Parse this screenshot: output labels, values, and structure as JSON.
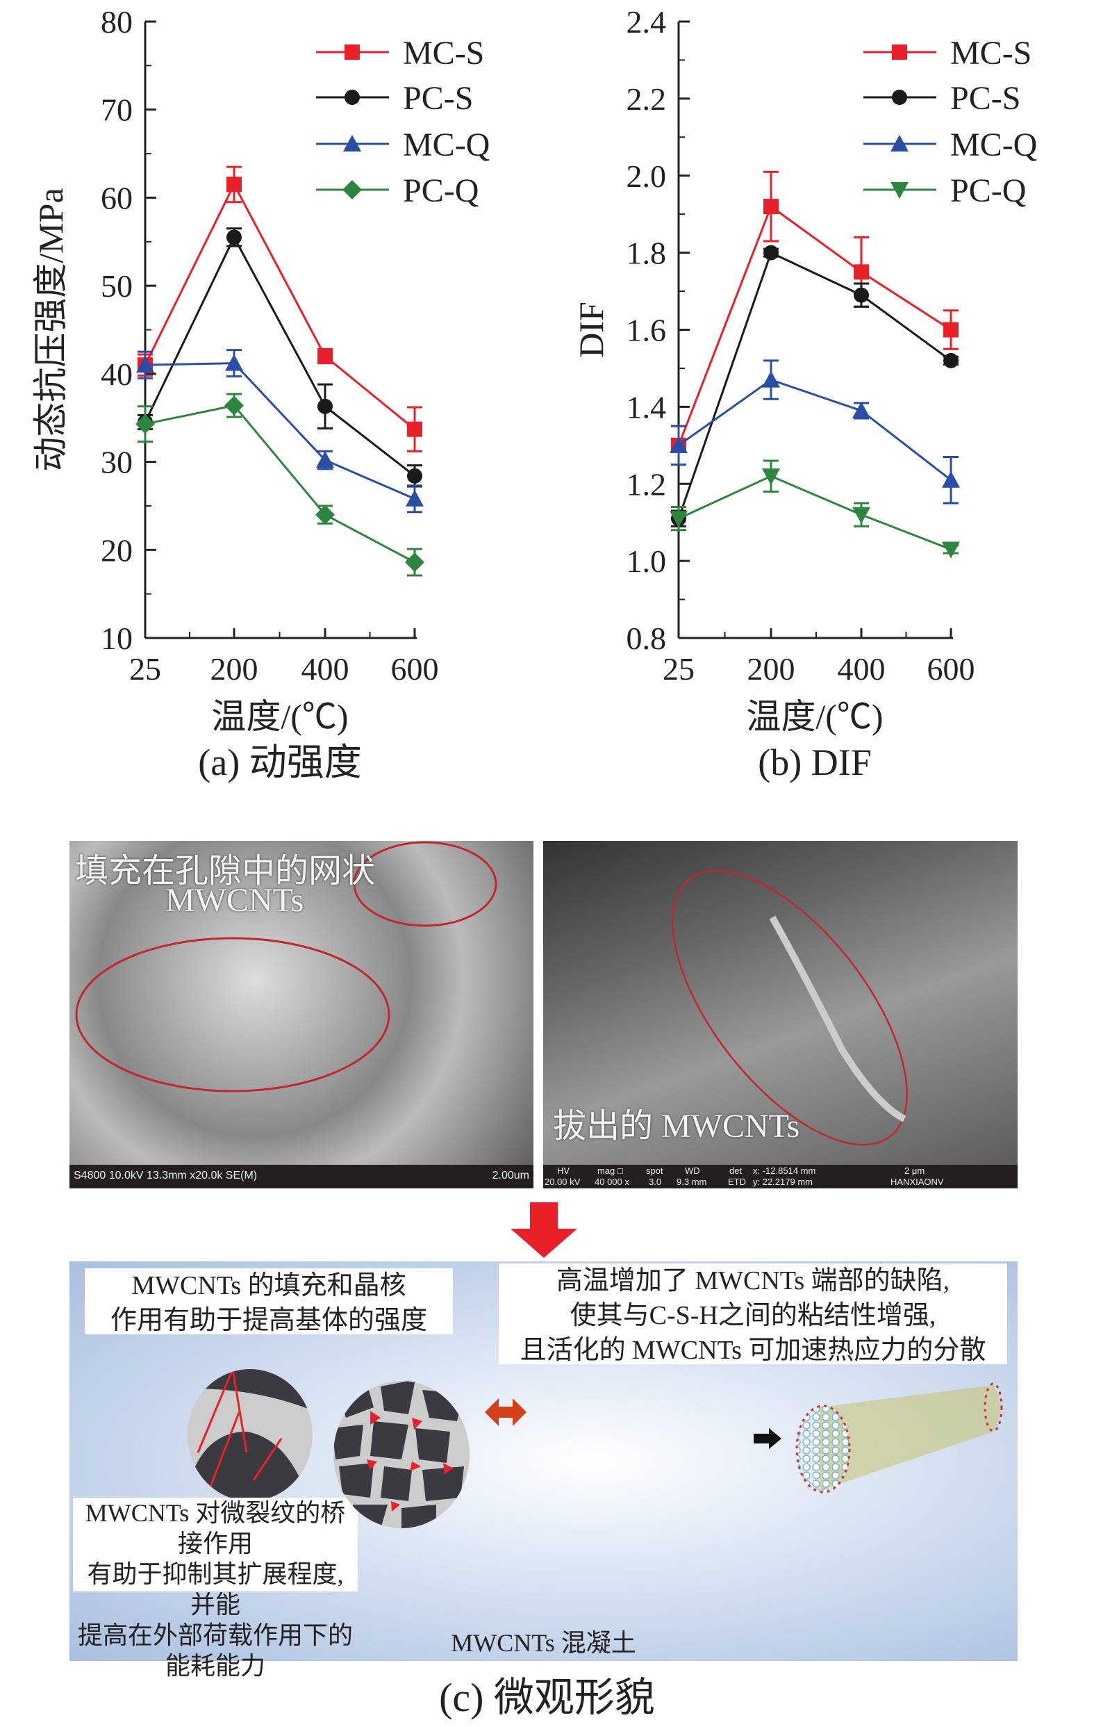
{
  "chart_data": [
    {
      "type": "line",
      "panel": "a",
      "xlabel": "温度/(℃)",
      "ylabel": "动态抗压强度/MPa",
      "caption": "(a) 动强度",
      "categories": [
        "25",
        "200",
        "400",
        "600"
      ],
      "ylim": [
        10,
        80
      ],
      "yticks": [
        "10",
        "20",
        "30",
        "40",
        "50",
        "60",
        "70",
        "80"
      ],
      "legend": "top-right",
      "series": [
        {
          "name": "MC-S",
          "color": "#e8202a",
          "marker": "square",
          "values": [
            41,
            61.5,
            42,
            33.7
          ],
          "errors": [
            1.2,
            2,
            0.8,
            2.5
          ]
        },
        {
          "name": "PC-S",
          "color": "#1a1a1a",
          "marker": "circle",
          "values": [
            34.5,
            55.5,
            36.3,
            28.4
          ],
          "errors": [
            0.8,
            1,
            2.5,
            1.2
          ]
        },
        {
          "name": "MC-Q",
          "color": "#2a4ea6",
          "marker": "triangle-up",
          "values": [
            41,
            41.2,
            30.2,
            25.8
          ],
          "errors": [
            1.5,
            1.5,
            1,
            1.5
          ]
        },
        {
          "name": "PC-Q",
          "color": "#2e8540",
          "marker": "diamond",
          "values": [
            34.3,
            36.4,
            24,
            18.6
          ],
          "errors": [
            2,
            1.3,
            1,
            1.5
          ]
        }
      ]
    },
    {
      "type": "line",
      "panel": "b",
      "xlabel": "温度/(℃)",
      "ylabel": "DIF",
      "caption": "(b) DIF",
      "categories": [
        "25",
        "200",
        "400",
        "600"
      ],
      "ylim": [
        0.8,
        2.4
      ],
      "yticks": [
        "0.8",
        "1.0",
        "1.2",
        "1.4",
        "1.6",
        "1.8",
        "2.0",
        "2.2",
        "2.4"
      ],
      "legend": "top-right",
      "series": [
        {
          "name": "MC-S",
          "color": "#e8202a",
          "marker": "square",
          "values": [
            1.3,
            1.92,
            1.75,
            1.6
          ],
          "errors": [
            0.05,
            0.09,
            0.09,
            0.05
          ]
        },
        {
          "name": "PC-S",
          "color": "#1a1a1a",
          "marker": "circle",
          "values": [
            1.11,
            1.8,
            1.69,
            1.52
          ],
          "errors": [
            0.02,
            0.01,
            0.03,
            0.01
          ]
        },
        {
          "name": "MC-Q",
          "color": "#2a4ea6",
          "marker": "triangle-up",
          "values": [
            1.3,
            1.47,
            1.39,
            1.21
          ],
          "errors": [
            0.05,
            0.05,
            0.02,
            0.06
          ]
        },
        {
          "name": "PC-Q",
          "color": "#2e8540",
          "marker": "triangle-down",
          "values": [
            1.11,
            1.22,
            1.12,
            1.03
          ],
          "errors": [
            0.03,
            0.04,
            0.03,
            0.01
          ]
        }
      ]
    }
  ],
  "sem": {
    "left_label_1": "填充在孔隙中的网状",
    "left_label_2": "MWCNTs",
    "left_bar": "S4800 10.0kV 13.3mm x20.0k SE(M)",
    "left_scale": "2.00um",
    "right_label": "拔出的 MWCNTs",
    "right_bar": {
      "hv": "HV",
      "hv_val": "20.00 kV",
      "mag": "mag □",
      "mag_val": "40 000 x",
      "spot": "spot",
      "spot_val": "3.0",
      "wd": "WD",
      "wd_val": "9.3 mm",
      "det": "det",
      "det_val": "ETD",
      "x": "x: -12.8514 mm",
      "y": "y: 22.2179 mm",
      "scale": "2 μm",
      "name": "HANXIAONV"
    }
  },
  "schematic": {
    "box1": [
      "MWCNTs 的填充和晶核",
      "作用有助于提高基体的强度"
    ],
    "box2": [
      "高温增加了 MWCNTs 端部的缺陷,",
      "使其与C-S-H之间的粘结性增强,",
      "且活化的 MWCNTs 可加速热应力的分散"
    ],
    "box3": [
      "MWCNTs 对微裂纹的桥接作用",
      "有助于抑制其扩展程度, 并能",
      "提高在外部荷载作用下的能耗能力"
    ],
    "bottom_label": "MWCNTs 混凝土",
    "caption": "(c) 微观形貌"
  }
}
